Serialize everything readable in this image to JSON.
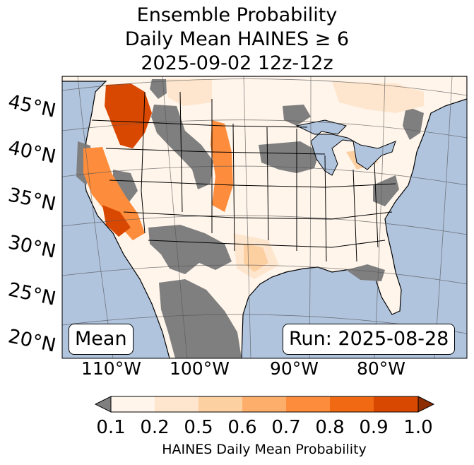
{
  "title": {
    "line1": "Ensemble Probability",
    "line2": "Daily Mean HAINES ≥ 6",
    "line3": "2025-09-02 12z-12z"
  },
  "map": {
    "lat_labels": [
      "45°N",
      "40°N",
      "35°N",
      "30°N",
      "25°N",
      "20°N"
    ],
    "lon_labels": [
      "110°W",
      "100°W",
      "90°W",
      "80°W"
    ],
    "left_badge": "Mean",
    "right_badge": "Run: 2025-08-28",
    "colors": {
      "ocean": "#b0c4de",
      "no_data": "#7f7f7f",
      "land_low": "#fff5eb"
    }
  },
  "colorbar": {
    "ticks": [
      "0.1",
      "0.2",
      "0.5",
      "0.6",
      "0.7",
      "0.8",
      "0.9",
      "1.0"
    ],
    "label": "HAINES Daily Mean Probability",
    "under_color": "#7f7f7f",
    "colors": [
      "#fff5eb",
      "#fee6ce",
      "#fdd0a2",
      "#fdae6b",
      "#fd8d3c",
      "#f16913",
      "#d94801",
      "#8c2d04"
    ]
  }
}
